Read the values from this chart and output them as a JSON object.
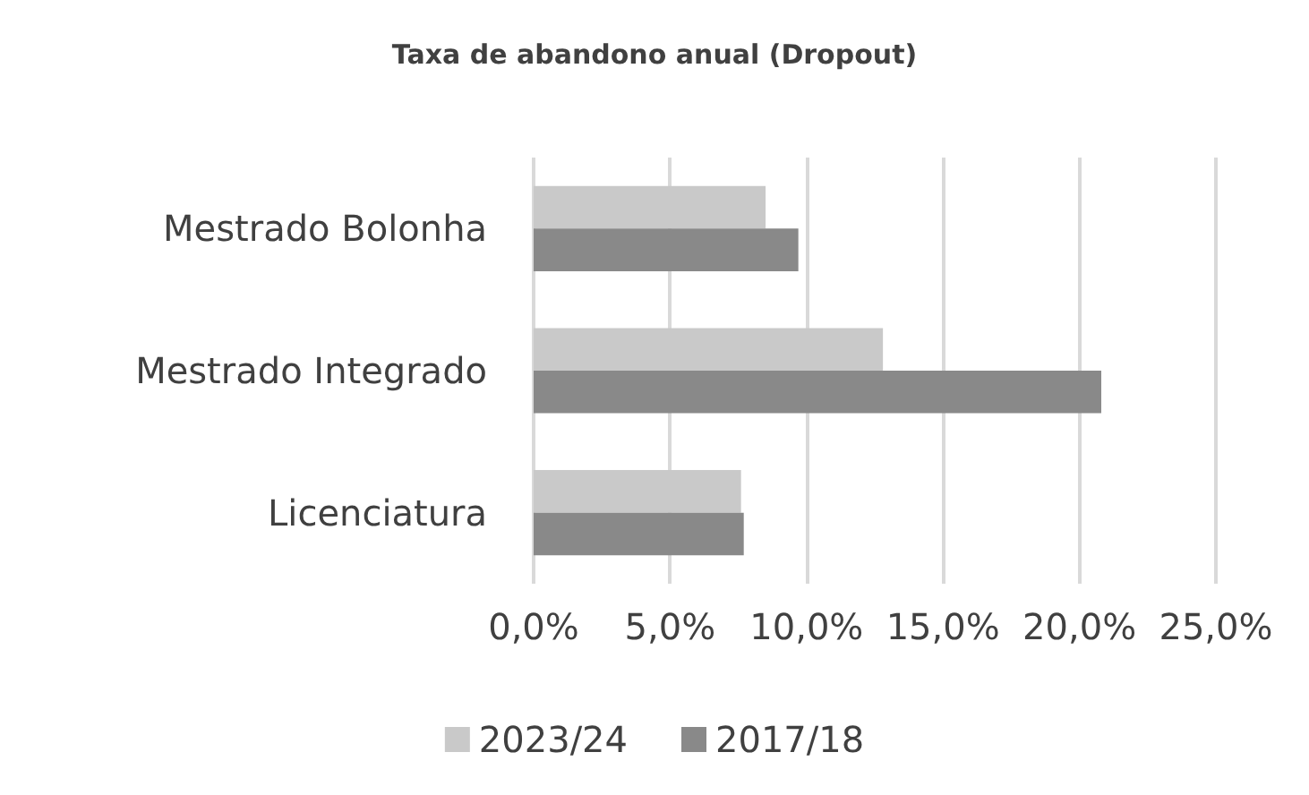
{
  "chart_data": {
    "type": "bar",
    "orientation": "horizontal",
    "title": "Taxa de abandono anual (Dropout)",
    "categories": [
      "Mestrado Bolonha",
      "Mestrado Integrado",
      "Licenciatura"
    ],
    "series": [
      {
        "name": "2023/24",
        "color": "#c9c9c9",
        "values": [
          8.5,
          12.8,
          7.6
        ]
      },
      {
        "name": "2017/18",
        "color": "#898989",
        "values": [
          9.7,
          20.8,
          7.7
        ]
      }
    ],
    "xlim": [
      0,
      25
    ],
    "xticks": [
      {
        "value": 0,
        "label": "0,0%"
      },
      {
        "value": 5,
        "label": "5,0%"
      },
      {
        "value": 10,
        "label": "10,0%"
      },
      {
        "value": 15,
        "label": "15,0%"
      },
      {
        "value": 20,
        "label": "20,0%"
      },
      {
        "value": 25,
        "label": "25,0%"
      }
    ],
    "grid": "x",
    "legend": "bottom"
  }
}
